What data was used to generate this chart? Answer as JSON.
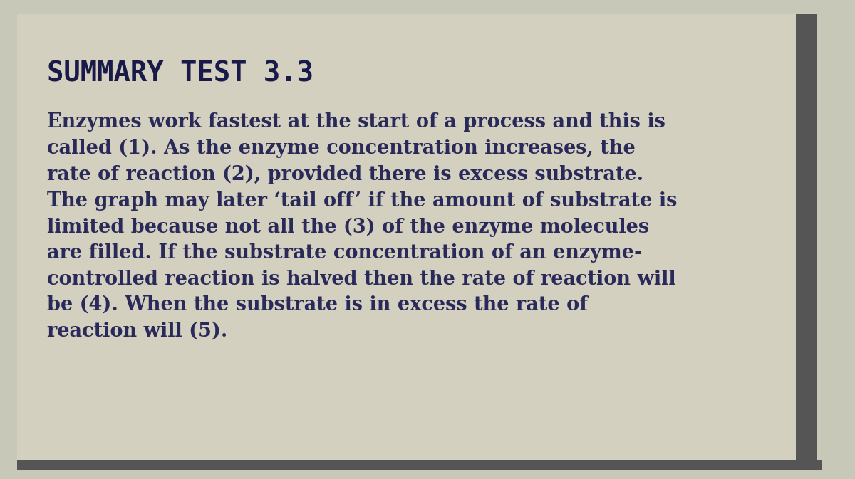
{
  "title": "SUMMARY TEST 3.3",
  "body_text": "Enzymes work fastest at the start of a process and this is\ncalled (1). As the enzyme concentration increases, the\nrate of reaction (2), provided there is excess substrate.\nThe graph may later ‘tail off’ if the amount of substrate is\nlimited because not all the (3) of the enzyme molecules\nare filled. If the substrate concentration of an enzyme-\ncontrolled reaction is halved then the rate of reaction will\nbe (4). When the substrate is in excess the rate of\nreaction will (5).",
  "bg_color": "#c8c8b8",
  "card_bg_color": "#d4d0c0",
  "text_color": "#2a2a5a",
  "title_color": "#1a1a4a",
  "border_color": "#555555",
  "right_bar_color": "#555555",
  "bottom_bar_color": "#555555",
  "title_fontsize": 28,
  "body_fontsize": 19.5
}
